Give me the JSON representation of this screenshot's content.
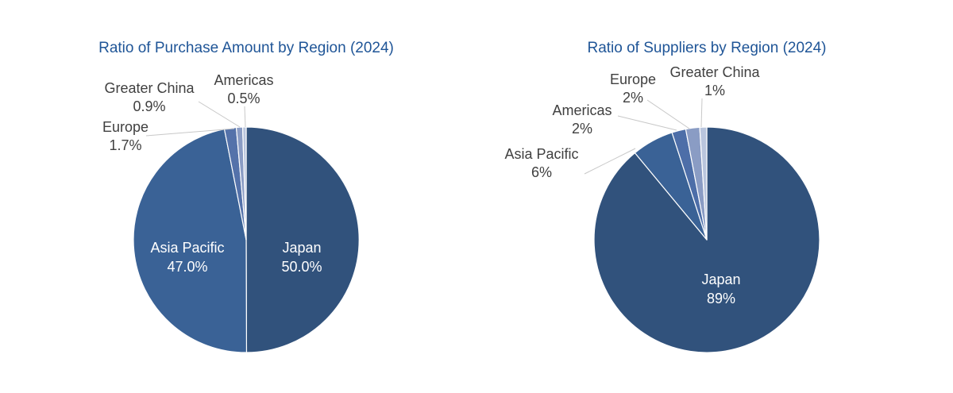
{
  "chart_data": [
    {
      "type": "pie",
      "title": "Ratio of Purchase Amount by Region (2024)",
      "slices": [
        {
          "label": "Japan",
          "value_label": "50.0%",
          "value": 50.0,
          "color": "#31527c"
        },
        {
          "label": "Asia Pacific",
          "value_label": "47.0%",
          "value": 47.0,
          "color": "#3a6296"
        },
        {
          "label": "Europe",
          "value_label": "1.7%",
          "value": 1.7,
          "color": "#5472aa"
        },
        {
          "label": "Greater China",
          "value_label": "0.9%",
          "value": 0.9,
          "color": "#8a9cc4"
        },
        {
          "label": "Americas",
          "value_label": "0.5%",
          "value": 0.5,
          "color": "#b9c5dd"
        }
      ]
    },
    {
      "type": "pie",
      "title": "Ratio of Suppliers by Region (2024)",
      "slices": [
        {
          "label": "Japan",
          "value_label": "89%",
          "value": 89,
          "color": "#31527c"
        },
        {
          "label": "Asia Pacific",
          "value_label": "6%",
          "value": 6,
          "color": "#3a6296"
        },
        {
          "label": "Americas",
          "value_label": "2%",
          "value": 2,
          "color": "#4d6ea8"
        },
        {
          "label": "Europe",
          "value_label": "2%",
          "value": 2,
          "color": "#8a9cc4"
        },
        {
          "label": "Greater China",
          "value_label": "1%",
          "value": 1,
          "color": "#b9c5dd"
        }
      ]
    }
  ]
}
